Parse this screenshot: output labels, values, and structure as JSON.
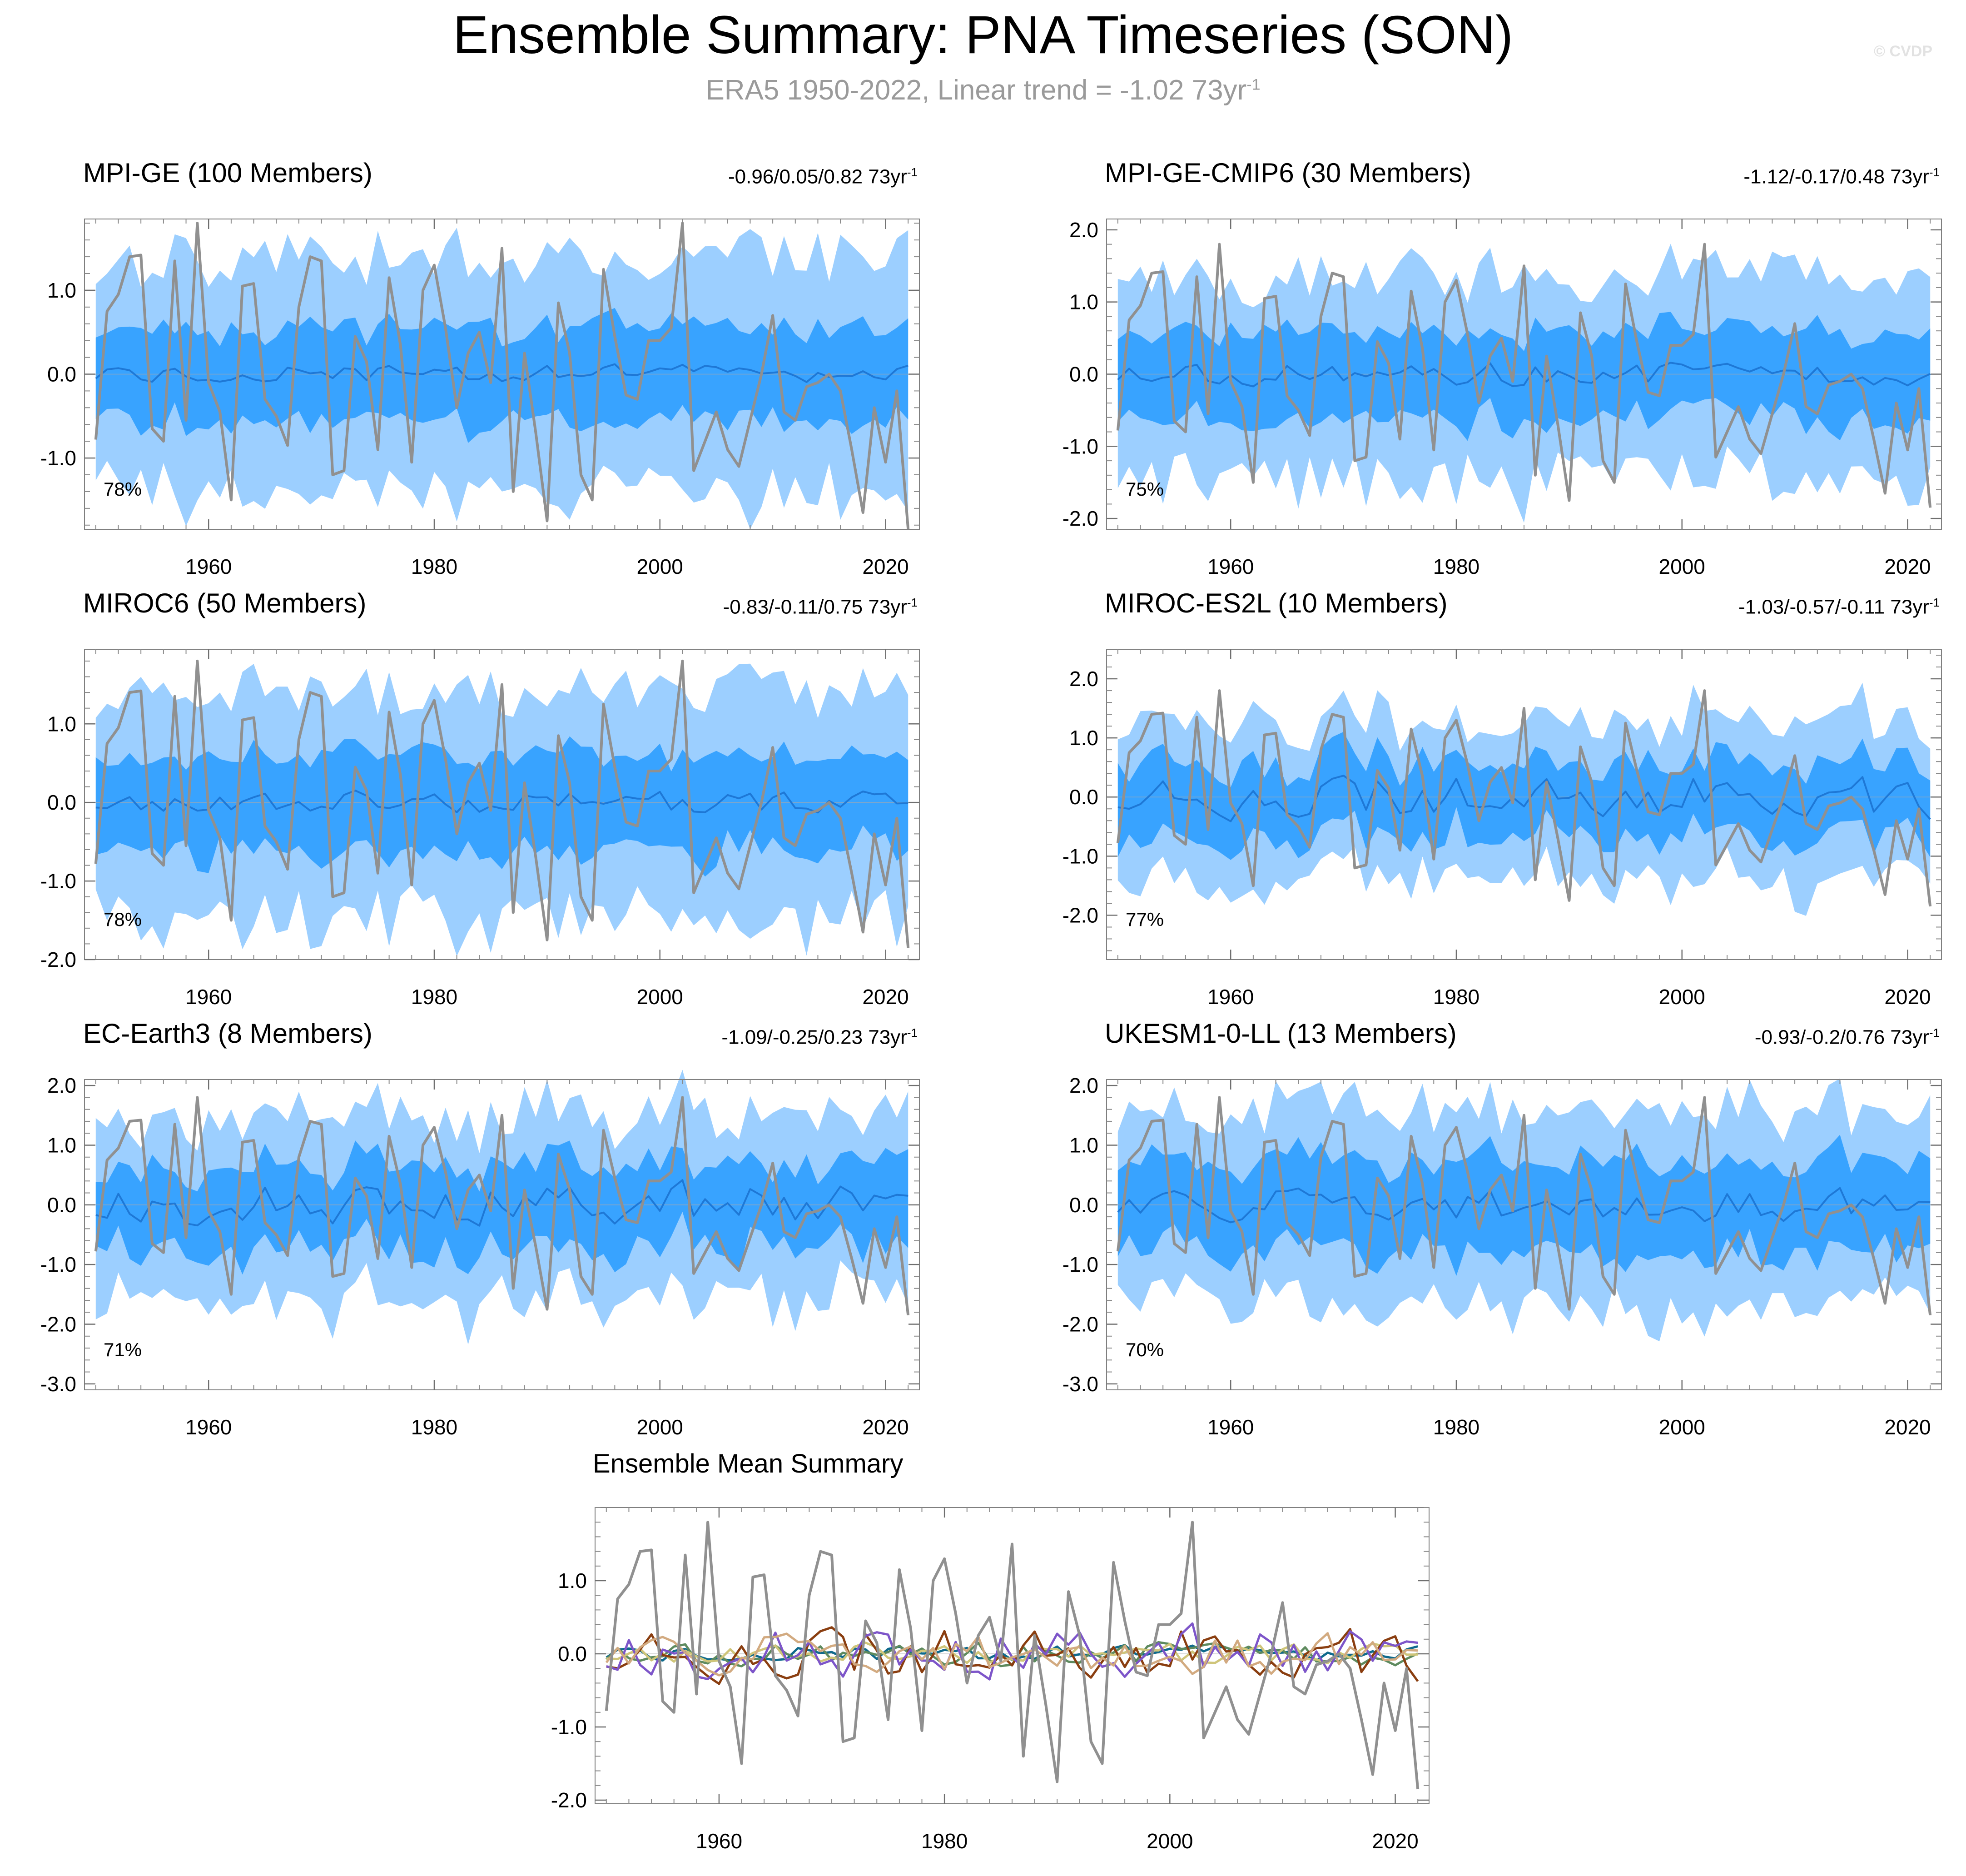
{
  "figure": {
    "title": "Ensemble Summary: PNA Timeseries (SON)",
    "subtitle_text": "ERA5 1950-2022, Linear trend = -1.02 73yr",
    "subtitle_sup": "-1",
    "credit": "© CVDP",
    "unit_text": "73yr",
    "unit_sup": "-1"
  },
  "colors": {
    "outer_band": "#9ccfff",
    "inner_band": "#38a3ff",
    "ensemble_mean_line": "#1e78d6",
    "observation_line": "#909090"
  },
  "chart_data": [
    {
      "type": "line",
      "title": "MPI-GE (100 Members)",
      "title_color": "#0f6a8c",
      "trend_range": "-0.96/0.05/0.82",
      "percent": "78%",
      "ylim": [
        -1.85,
        1.85
      ],
      "yticks": [
        1.0,
        0.0,
        -1.0
      ],
      "ytick_labels": [
        "1.0",
        "0.0",
        "-1.0"
      ],
      "xlim": [
        1949,
        2023
      ],
      "xticks": [
        1960,
        1980,
        2000,
        2020
      ],
      "xtick_labels": [
        "1960",
        "1980",
        "2000",
        "2020"
      ],
      "mean_amp": 0.1,
      "inner_amp": 0.55,
      "outer_amp": 1.35,
      "seed": 11
    },
    {
      "type": "line",
      "title": "MPI-GE-CMIP6 (30 Members)",
      "title_color": "#5e8a5e",
      "trend_range": "-1.12/-0.17/0.48",
      "percent": "75%",
      "ylim": [
        -2.15,
        2.15
      ],
      "yticks": [
        2.0,
        1.0,
        0.0,
        -1.0,
        -2.0
      ],
      "ytick_labels": [
        "2.0",
        "1.0",
        "0.0",
        "-1.0",
        "-2.0"
      ],
      "xlim": [
        1949,
        2023
      ],
      "xticks": [
        1960,
        1980,
        2000,
        2020
      ],
      "xtick_labels": [
        "1960",
        "1980",
        "2000",
        "2020"
      ],
      "mean_amp": 0.15,
      "inner_amp": 0.6,
      "outer_amp": 1.35,
      "seed": 23
    },
    {
      "type": "line",
      "title": "MIROC6 (50 Members)",
      "title_color": "#cfc57a",
      "trend_range": "-0.83/-0.11/0.75",
      "percent": "78%",
      "ylim": [
        -2.0,
        1.95
      ],
      "yticks": [
        1.0,
        0.0,
        -1.0,
        -2.0
      ],
      "ytick_labels": [
        "1.0",
        "0.0",
        "-1.0",
        "-2.0"
      ],
      "xlim": [
        1949,
        2023
      ],
      "xticks": [
        1960,
        1980,
        2000,
        2020
      ],
      "xtick_labels": [
        "1960",
        "1980",
        "2000",
        "2020"
      ],
      "mean_amp": 0.13,
      "inner_amp": 0.6,
      "outer_amp": 1.4,
      "seed": 37
    },
    {
      "type": "line",
      "title": "MIROC-ES2L (10 Members)",
      "title_color": "#8a3e10",
      "trend_range": "-1.03/-0.57/-0.11",
      "percent": "77%",
      "ylim": [
        -2.75,
        2.5
      ],
      "yticks": [
        2.0,
        1.0,
        0.0,
        -1.0,
        -2.0
      ],
      "ytick_labels": [
        "2.0",
        "1.0",
        "0.0",
        "-1.0",
        "-2.0"
      ],
      "xlim": [
        1949,
        2023
      ],
      "xticks": [
        1960,
        1980,
        2000,
        2020
      ],
      "xtick_labels": [
        "1960",
        "1980",
        "2000",
        "2020"
      ],
      "mean_amp": 0.35,
      "inner_amp": 0.6,
      "outer_amp": 1.3,
      "seed": 41
    },
    {
      "type": "line",
      "title": "EC-Earth3 (8 Members)",
      "title_color": "#7d55c9",
      "trend_range": "-1.09/-0.25/0.23",
      "percent": "71%",
      "ylim": [
        -3.1,
        2.1
      ],
      "yticks": [
        2.0,
        1.0,
        0.0,
        -1.0,
        -2.0,
        -3.0
      ],
      "ytick_labels": [
        "2.0",
        "1.0",
        "0.0",
        "-1.0",
        "-2.0",
        "-3.0"
      ],
      "xlim": [
        1949,
        2023
      ],
      "xticks": [
        1960,
        1980,
        2000,
        2020
      ],
      "xtick_labels": [
        "1960",
        "1980",
        "2000",
        "2020"
      ],
      "mean_amp": 0.35,
      "inner_amp": 0.7,
      "outer_amp": 1.5,
      "seed": 53
    },
    {
      "type": "line",
      "title": "UKESM1-0-LL (13 Members)",
      "title_color": "#d2aa80",
      "trend_range": "-0.93/-0.2/0.76",
      "percent": "70%",
      "ylim": [
        -3.1,
        2.1
      ],
      "yticks": [
        2.0,
        1.0,
        0.0,
        -1.0,
        -2.0,
        -3.0
      ],
      "ytick_labels": [
        "2.0",
        "1.0",
        "0.0",
        "-1.0",
        "-2.0",
        "-3.0"
      ],
      "xlim": [
        1949,
        2023
      ],
      "xticks": [
        1960,
        1980,
        2000,
        2020
      ],
      "xtick_labels": [
        "1960",
        "1980",
        "2000",
        "2020"
      ],
      "mean_amp": 0.25,
      "inner_amp": 0.75,
      "outer_amp": 1.55,
      "seed": 67
    },
    {
      "type": "line",
      "title": "Ensemble Mean Summary",
      "ylim": [
        -2.05,
        2.0
      ],
      "yticks": [
        1.0,
        0.0,
        -1.0,
        -2.0
      ],
      "ytick_labels": [
        "1.0",
        "0.0",
        "-1.0",
        "-2.0"
      ],
      "xlim": [
        1949,
        2023
      ],
      "xticks": [
        1960,
        1980,
        2000,
        2020
      ],
      "xtick_labels": [
        "1960",
        "1980",
        "2000",
        "2020"
      ],
      "series_colors": [
        "#0f6a8c",
        "#5e8a5e",
        "#cfc57a",
        "#8a3e10",
        "#7d55c9",
        "#d2aa80"
      ]
    }
  ],
  "observations": {
    "name": "ERA5",
    "x": [
      1950,
      1951,
      1952,
      1953,
      1954,
      1955,
      1956,
      1957,
      1958,
      1959,
      1960,
      1961,
      1962,
      1963,
      1964,
      1965,
      1966,
      1967,
      1968,
      1969,
      1970,
      1971,
      1972,
      1973,
      1974,
      1975,
      1976,
      1977,
      1978,
      1979,
      1980,
      1981,
      1982,
      1983,
      1984,
      1985,
      1986,
      1987,
      1988,
      1989,
      1990,
      1991,
      1992,
      1993,
      1994,
      1995,
      1996,
      1997,
      1998,
      1999,
      2000,
      2001,
      2002,
      2003,
      2004,
      2005,
      2006,
      2007,
      2008,
      2009,
      2010,
      2011,
      2012,
      2013,
      2014,
      2015,
      2016,
      2017,
      2018,
      2019,
      2020,
      2021,
      2022
    ],
    "values": [
      -0.78,
      0.75,
      0.95,
      1.4,
      1.42,
      -0.65,
      -0.8,
      1.35,
      -0.55,
      1.8,
      -0.1,
      -0.45,
      -1.5,
      1.05,
      1.08,
      -0.3,
      -0.5,
      -0.85,
      0.8,
      1.4,
      1.35,
      -1.2,
      -1.15,
      0.45,
      0.15,
      -0.9,
      1.15,
      0.35,
      -1.05,
      1.0,
      1.3,
      0.55,
      -0.4,
      0.25,
      0.5,
      -0.1,
      1.5,
      -1.4,
      0.25,
      -0.7,
      -1.75,
      0.85,
      0.25,
      -1.2,
      -1.5,
      1.25,
      0.45,
      -0.25,
      -0.3,
      0.4,
      0.4,
      0.55,
      1.8,
      -1.15,
      -0.8,
      -0.45,
      -0.9,
      -1.1,
      -0.55,
      0.0,
      0.7,
      -0.45,
      -0.55,
      -0.15,
      -0.1,
      0.0,
      -0.2,
      -0.9,
      -1.65,
      -0.4,
      -1.05,
      -0.2,
      -1.85
    ]
  }
}
